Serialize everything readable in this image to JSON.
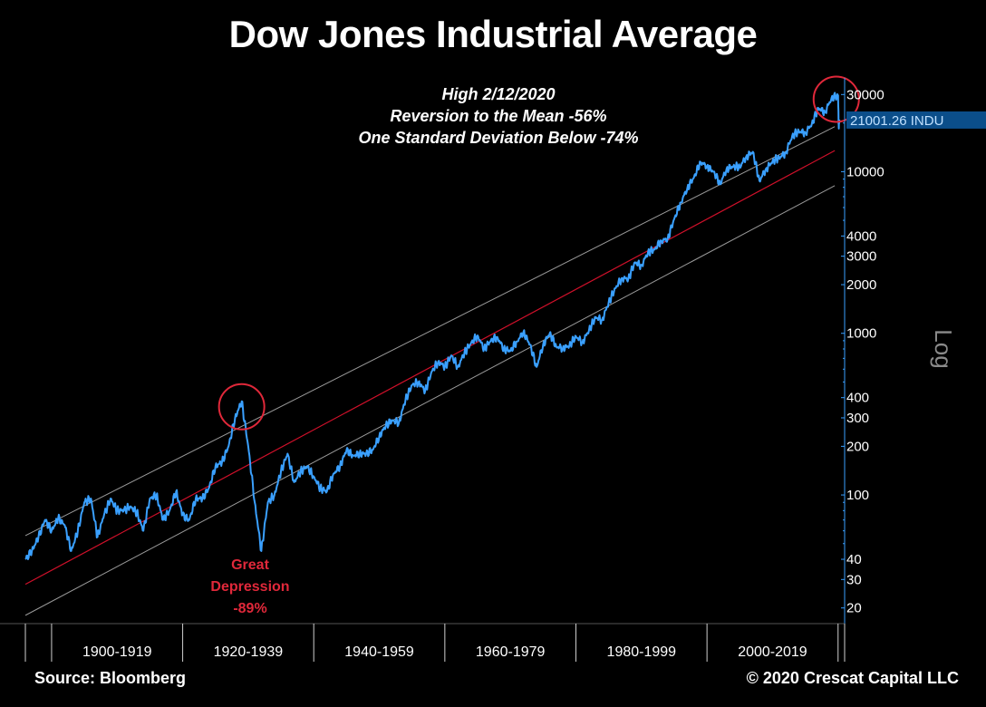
{
  "chart_data": {
    "type": "line",
    "title": "Dow Jones Industrial Average",
    "annotation_lines": [
      "High 2/12/2020",
      "Reversion to the Mean -56%",
      "One Standard Deviation Below -74%"
    ],
    "depression_label": [
      "Great",
      "Depression",
      "-89%"
    ],
    "yscale": "log",
    "ylabel": "Log",
    "ylim": [
      16,
      38000
    ],
    "xlim": [
      1896,
      2021
    ],
    "y_ticks": [
      20,
      30,
      40,
      100,
      200,
      300,
      400,
      1000,
      2000,
      3000,
      4000,
      10000,
      30000
    ],
    "x_period_labels": [
      "1900-1919",
      "1920-1939",
      "1940-1959",
      "1960-1979",
      "1980-1999",
      "2000-2019"
    ],
    "x_period_bounds": [
      1896,
      1900,
      1920,
      1940,
      1960,
      1980,
      2000,
      2020,
      2021
    ],
    "last_value_label": "21001.26 INDU",
    "last_value": 21001.26,
    "series": [
      {
        "name": "INDU",
        "color": "#3aa0ff",
        "x": [
          1896,
          1897,
          1898,
          1899,
          1900,
          1901,
          1902,
          1903,
          1904,
          1905,
          1906,
          1907,
          1908,
          1909,
          1910,
          1911,
          1912,
          1913,
          1914,
          1915,
          1916,
          1917,
          1918,
          1919,
          1920,
          1921,
          1922,
          1923,
          1924,
          1925,
          1926,
          1927,
          1928,
          1929,
          1930,
          1931,
          1932,
          1933,
          1934,
          1935,
          1936,
          1937,
          1938,
          1939,
          1940,
          1941,
          1942,
          1943,
          1944,
          1945,
          1946,
          1947,
          1948,
          1949,
          1950,
          1951,
          1952,
          1953,
          1954,
          1955,
          1956,
          1957,
          1958,
          1959,
          1960,
          1961,
          1962,
          1963,
          1964,
          1965,
          1966,
          1967,
          1968,
          1969,
          1970,
          1971,
          1972,
          1973,
          1974,
          1975,
          1976,
          1977,
          1978,
          1979,
          1980,
          1981,
          1982,
          1983,
          1984,
          1985,
          1986,
          1987,
          1988,
          1989,
          1990,
          1991,
          1992,
          1993,
          1994,
          1995,
          1996,
          1997,
          1998,
          1999,
          2000,
          2001,
          2002,
          2003,
          2004,
          2005,
          2006,
          2007,
          2008,
          2009,
          2010,
          2011,
          2012,
          2013,
          2014,
          2015,
          2016,
          2017,
          2018,
          2019,
          2020,
          2020.1,
          2020.2
        ],
        "values": [
          40,
          45,
          55,
          70,
          60,
          72,
          65,
          45,
          60,
          90,
          95,
          55,
          75,
          95,
          80,
          80,
          85,
          78,
          60,
          95,
          100,
          70,
          80,
          105,
          75,
          70,
          95,
          95,
          110,
          150,
          160,
          200,
          300,
          380,
          200,
          90,
          45,
          90,
          100,
          140,
          180,
          120,
          140,
          150,
          130,
          110,
          105,
          135,
          150,
          190,
          175,
          180,
          180,
          190,
          230,
          270,
          290,
          280,
          390,
          480,
          500,
          440,
          580,
          670,
          620,
          730,
          620,
          760,
          870,
          970,
          800,
          900,
          950,
          800,
          780,
          890,
          1020,
          850,
          620,
          850,
          1000,
          830,
          810,
          840,
          960,
          880,
          1050,
          1260,
          1210,
          1550,
          1900,
          2200,
          2170,
          2750,
          2630,
          3170,
          3300,
          3750,
          3830,
          5100,
          6450,
          7900,
          9200,
          11500,
          10800,
          10000,
          8400,
          10450,
          10780,
          10720,
          12460,
          13260,
          8780,
          10430,
          11580,
          12220,
          13100,
          16580,
          17820,
          17420,
          19760,
          24720,
          23330,
          28540,
          29550,
          19000,
          21001
        ]
      }
    ],
    "trend_lines": [
      {
        "name": "upper band",
        "color": "#9a9a9a",
        "y_start": 56,
        "y_end": 19000
      },
      {
        "name": "mean",
        "color": "#d0102a",
        "y_start": 28,
        "y_end": 13500
      },
      {
        "name": "lower band",
        "color": "#9a9a9a",
        "y_start": 18,
        "y_end": 8200
      }
    ],
    "highlight_circles": [
      {
        "name": "1929 peak",
        "x": 1929,
        "y": 370
      },
      {
        "name": "2020 high",
        "x": 2020,
        "y": 29550
      }
    ],
    "axis_color": "#3aa0ff",
    "accent_red": "#e0283a"
  },
  "footer": {
    "source": "Source: Bloomberg",
    "copyright": "© 2020 Crescat Capital LLC"
  }
}
